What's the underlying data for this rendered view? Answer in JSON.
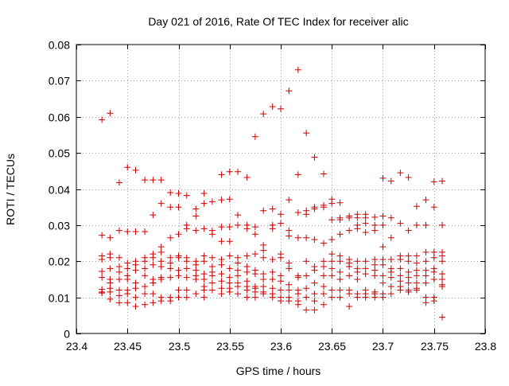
{
  "chart_data": {
    "type": "scatter",
    "title": "Day 021 of 2016, Rate Of TEC Index for receiver alic",
    "xlabel": "GPS time / hours",
    "ylabel": "ROTI / TECUs",
    "xlim": [
      23.4,
      23.8
    ],
    "ylim": [
      0,
      0.08
    ],
    "xticks": [
      "23.4",
      "23.45",
      "23.5",
      "23.55",
      "23.6",
      "23.65",
      "23.7",
      "23.75",
      "23.8"
    ],
    "yticks": [
      "0",
      "0.01",
      "0.02",
      "0.03",
      "0.04",
      "0.05",
      "0.06",
      "0.07",
      "0.08"
    ],
    "grid": true,
    "marker": "plus",
    "series_color": "#cc0000",
    "points": [
      [
        23.425,
        0.0592
      ],
      [
        23.425,
        0.0272
      ],
      [
        23.425,
        0.0215
      ],
      [
        23.425,
        0.0205
      ],
      [
        23.425,
        0.0172
      ],
      [
        23.425,
        0.0155
      ],
      [
        23.425,
        0.0122
      ],
      [
        23.425,
        0.0115
      ],
      [
        23.425,
        0.0112
      ],
      [
        23.433,
        0.061
      ],
      [
        23.433,
        0.0265
      ],
      [
        23.433,
        0.022
      ],
      [
        23.433,
        0.021
      ],
      [
        23.433,
        0.018
      ],
      [
        23.433,
        0.015
      ],
      [
        23.433,
        0.014
      ],
      [
        23.433,
        0.0125
      ],
      [
        23.433,
        0.0115
      ],
      [
        23.433,
        0.0095
      ],
      [
        23.442,
        0.0418
      ],
      [
        23.442,
        0.0285
      ],
      [
        23.442,
        0.021
      ],
      [
        23.442,
        0.0185
      ],
      [
        23.442,
        0.017
      ],
      [
        23.442,
        0.015
      ],
      [
        23.442,
        0.012
      ],
      [
        23.442,
        0.0105
      ],
      [
        23.442,
        0.0085
      ],
      [
        23.45,
        0.046
      ],
      [
        23.45,
        0.0282
      ],
      [
        23.45,
        0.0195
      ],
      [
        23.45,
        0.018
      ],
      [
        23.45,
        0.016
      ],
      [
        23.45,
        0.015
      ],
      [
        23.45,
        0.012
      ],
      [
        23.45,
        0.011
      ],
      [
        23.45,
        0.0085
      ],
      [
        23.458,
        0.0452
      ],
      [
        23.458,
        0.0282
      ],
      [
        23.458,
        0.02
      ],
      [
        23.458,
        0.019
      ],
      [
        23.458,
        0.0175
      ],
      [
        23.458,
        0.014
      ],
      [
        23.458,
        0.0125
      ],
      [
        23.458,
        0.01
      ],
      [
        23.458,
        0.0075
      ],
      [
        23.467,
        0.0425
      ],
      [
        23.467,
        0.0282
      ],
      [
        23.467,
        0.021
      ],
      [
        23.467,
        0.02
      ],
      [
        23.467,
        0.018
      ],
      [
        23.467,
        0.016
      ],
      [
        23.467,
        0.013
      ],
      [
        23.467,
        0.011
      ],
      [
        23.467,
        0.008
      ],
      [
        23.475,
        0.0425
      ],
      [
        23.475,
        0.0328
      ],
      [
        23.475,
        0.022
      ],
      [
        23.475,
        0.021
      ],
      [
        23.475,
        0.019
      ],
      [
        23.475,
        0.015
      ],
      [
        23.475,
        0.014
      ],
      [
        23.475,
        0.011
      ],
      [
        23.475,
        0.0085
      ],
      [
        23.483,
        0.0425
      ],
      [
        23.483,
        0.036
      ],
      [
        23.483,
        0.024
      ],
      [
        23.483,
        0.0225
      ],
      [
        23.483,
        0.02
      ],
      [
        23.483,
        0.0185
      ],
      [
        23.483,
        0.0155
      ],
      [
        23.483,
        0.015
      ],
      [
        23.483,
        0.01
      ],
      [
        23.483,
        0.009
      ],
      [
        23.492,
        0.039
      ],
      [
        23.492,
        0.035
      ],
      [
        23.492,
        0.0265
      ],
      [
        23.492,
        0.021
      ],
      [
        23.492,
        0.0195
      ],
      [
        23.492,
        0.018
      ],
      [
        23.492,
        0.0155
      ],
      [
        23.492,
        0.01
      ],
      [
        23.492,
        0.009
      ],
      [
        23.5,
        0.0388
      ],
      [
        23.5,
        0.035
      ],
      [
        23.5,
        0.0275
      ],
      [
        23.5,
        0.0215
      ],
      [
        23.5,
        0.021
      ],
      [
        23.5,
        0.0175
      ],
      [
        23.5,
        0.016
      ],
      [
        23.5,
        0.012
      ],
      [
        23.5,
        0.01
      ],
      [
        23.508,
        0.0382
      ],
      [
        23.508,
        0.03
      ],
      [
        23.508,
        0.029
      ],
      [
        23.508,
        0.021
      ],
      [
        23.508,
        0.02
      ],
      [
        23.508,
        0.018
      ],
      [
        23.508,
        0.0155
      ],
      [
        23.508,
        0.012
      ],
      [
        23.508,
        0.01
      ],
      [
        23.517,
        0.0345
      ],
      [
        23.517,
        0.0325
      ],
      [
        23.517,
        0.0285
      ],
      [
        23.517,
        0.02
      ],
      [
        23.517,
        0.019
      ],
      [
        23.517,
        0.0175
      ],
      [
        23.517,
        0.016
      ],
      [
        23.517,
        0.015
      ],
      [
        23.517,
        0.011
      ],
      [
        23.525,
        0.0388
      ],
      [
        23.525,
        0.036
      ],
      [
        23.525,
        0.029
      ],
      [
        23.525,
        0.0215
      ],
      [
        23.525,
        0.02
      ],
      [
        23.525,
        0.0165
      ],
      [
        23.525,
        0.015
      ],
      [
        23.525,
        0.013
      ],
      [
        23.525,
        0.012
      ],
      [
        23.525,
        0.01
      ],
      [
        23.533,
        0.0365
      ],
      [
        23.533,
        0.0285
      ],
      [
        23.533,
        0.0275
      ],
      [
        23.533,
        0.021
      ],
      [
        23.533,
        0.0185
      ],
      [
        23.533,
        0.017
      ],
      [
        23.533,
        0.016
      ],
      [
        23.533,
        0.014
      ],
      [
        23.533,
        0.012
      ],
      [
        23.542,
        0.044
      ],
      [
        23.542,
        0.037
      ],
      [
        23.542,
        0.0295
      ],
      [
        23.542,
        0.0255
      ],
      [
        23.542,
        0.0205
      ],
      [
        23.542,
        0.019
      ],
      [
        23.542,
        0.0165
      ],
      [
        23.542,
        0.0145
      ],
      [
        23.542,
        0.0125
      ],
      [
        23.542,
        0.011
      ],
      [
        23.55,
        0.0448
      ],
      [
        23.55,
        0.0372
      ],
      [
        23.55,
        0.0295
      ],
      [
        23.55,
        0.0255
      ],
      [
        23.55,
        0.0215
      ],
      [
        23.55,
        0.018
      ],
      [
        23.55,
        0.0155
      ],
      [
        23.55,
        0.014
      ],
      [
        23.55,
        0.0125
      ],
      [
        23.55,
        0.0115
      ],
      [
        23.558,
        0.0448
      ],
      [
        23.558,
        0.0328
      ],
      [
        23.558,
        0.03
      ],
      [
        23.558,
        0.021
      ],
      [
        23.558,
        0.0195
      ],
      [
        23.558,
        0.0175
      ],
      [
        23.558,
        0.016
      ],
      [
        23.558,
        0.014
      ],
      [
        23.558,
        0.013
      ],
      [
        23.558,
        0.011
      ],
      [
        23.567,
        0.0432
      ],
      [
        23.567,
        0.03
      ],
      [
        23.567,
        0.029
      ],
      [
        23.567,
        0.0215
      ],
      [
        23.567,
        0.0185
      ],
      [
        23.567,
        0.017
      ],
      [
        23.567,
        0.0145
      ],
      [
        23.567,
        0.013
      ],
      [
        23.567,
        0.012
      ],
      [
        23.567,
        0.01
      ],
      [
        23.575,
        0.0545
      ],
      [
        23.575,
        0.0295
      ],
      [
        23.575,
        0.0275
      ],
      [
        23.575,
        0.022
      ],
      [
        23.575,
        0.0175
      ],
      [
        23.575,
        0.0165
      ],
      [
        23.575,
        0.013
      ],
      [
        23.575,
        0.0125
      ],
      [
        23.575,
        0.0115
      ],
      [
        23.575,
        0.01
      ],
      [
        23.583,
        0.0608
      ],
      [
        23.583,
        0.034
      ],
      [
        23.583,
        0.0245
      ],
      [
        23.583,
        0.023
      ],
      [
        23.583,
        0.021
      ],
      [
        23.583,
        0.0165
      ],
      [
        23.583,
        0.015
      ],
      [
        23.583,
        0.013
      ],
      [
        23.583,
        0.0115
      ],
      [
        23.583,
        0.011
      ],
      [
        23.592,
        0.0628
      ],
      [
        23.592,
        0.0345
      ],
      [
        23.592,
        0.03
      ],
      [
        23.592,
        0.029
      ],
      [
        23.592,
        0.0205
      ],
      [
        23.592,
        0.017
      ],
      [
        23.592,
        0.015
      ],
      [
        23.592,
        0.0125
      ],
      [
        23.592,
        0.011
      ],
      [
        23.592,
        0.01
      ],
      [
        23.6,
        0.0622
      ],
      [
        23.6,
        0.033
      ],
      [
        23.6,
        0.0305
      ],
      [
        23.6,
        0.022
      ],
      [
        23.6,
        0.021
      ],
      [
        23.6,
        0.016
      ],
      [
        23.6,
        0.0145
      ],
      [
        23.6,
        0.012
      ],
      [
        23.6,
        0.01
      ],
      [
        23.6,
        0.009
      ],
      [
        23.608,
        0.0672
      ],
      [
        23.608,
        0.037
      ],
      [
        23.608,
        0.0285
      ],
      [
        23.608,
        0.027
      ],
      [
        23.608,
        0.0195
      ],
      [
        23.608,
        0.018
      ],
      [
        23.608,
        0.0135
      ],
      [
        23.608,
        0.012
      ],
      [
        23.608,
        0.01
      ],
      [
        23.608,
        0.009
      ],
      [
        23.617,
        0.073
      ],
      [
        23.617,
        0.044
      ],
      [
        23.617,
        0.0335
      ],
      [
        23.617,
        0.0265
      ],
      [
        23.617,
        0.016
      ],
      [
        23.617,
        0.0155
      ],
      [
        23.617,
        0.012
      ],
      [
        23.617,
        0.011
      ],
      [
        23.617,
        0.009
      ],
      [
        23.617,
        0.008
      ],
      [
        23.625,
        0.0555
      ],
      [
        23.625,
        0.034
      ],
      [
        23.625,
        0.033
      ],
      [
        23.625,
        0.0265
      ],
      [
        23.625,
        0.02
      ],
      [
        23.625,
        0.016
      ],
      [
        23.625,
        0.0125
      ],
      [
        23.625,
        0.01
      ],
      [
        23.625,
        0.0065
      ],
      [
        23.633,
        0.0488
      ],
      [
        23.633,
        0.035
      ],
      [
        23.633,
        0.0345
      ],
      [
        23.633,
        0.026
      ],
      [
        23.633,
        0.0185
      ],
      [
        23.633,
        0.0175
      ],
      [
        23.633,
        0.014
      ],
      [
        23.633,
        0.011
      ],
      [
        23.633,
        0.009
      ],
      [
        23.633,
        0.0065
      ],
      [
        23.642,
        0.0442
      ],
      [
        23.642,
        0.0355
      ],
      [
        23.642,
        0.035
      ],
      [
        23.642,
        0.025
      ],
      [
        23.642,
        0.02
      ],
      [
        23.642,
        0.0185
      ],
      [
        23.642,
        0.016
      ],
      [
        23.642,
        0.013
      ],
      [
        23.642,
        0.011
      ],
      [
        23.642,
        0.008
      ],
      [
        23.65,
        0.0372
      ],
      [
        23.65,
        0.036
      ],
      [
        23.65,
        0.0315
      ],
      [
        23.65,
        0.026
      ],
      [
        23.65,
        0.022
      ],
      [
        23.65,
        0.02
      ],
      [
        23.65,
        0.018
      ],
      [
        23.65,
        0.016
      ],
      [
        23.65,
        0.012
      ],
      [
        23.65,
        0.01
      ],
      [
        23.658,
        0.0362
      ],
      [
        23.658,
        0.032
      ],
      [
        23.658,
        0.0315
      ],
      [
        23.658,
        0.0275
      ],
      [
        23.658,
        0.0215
      ],
      [
        23.658,
        0.02
      ],
      [
        23.658,
        0.017
      ],
      [
        23.658,
        0.015
      ],
      [
        23.658,
        0.012
      ],
      [
        23.658,
        0.01
      ],
      [
        23.667,
        0.0325
      ],
      [
        23.667,
        0.032
      ],
      [
        23.667,
        0.0285
      ],
      [
        23.667,
        0.0205
      ],
      [
        23.667,
        0.0195
      ],
      [
        23.667,
        0.0185
      ],
      [
        23.667,
        0.016
      ],
      [
        23.667,
        0.012
      ],
      [
        23.667,
        0.011
      ],
      [
        23.667,
        0.0075
      ],
      [
        23.675,
        0.033
      ],
      [
        23.675,
        0.032
      ],
      [
        23.675,
        0.03
      ],
      [
        23.675,
        0.029
      ],
      [
        23.675,
        0.02
      ],
      [
        23.675,
        0.018
      ],
      [
        23.675,
        0.017
      ],
      [
        23.675,
        0.015
      ],
      [
        23.675,
        0.011
      ],
      [
        23.675,
        0.01
      ],
      [
        23.683,
        0.033
      ],
      [
        23.683,
        0.032
      ],
      [
        23.683,
        0.0305
      ],
      [
        23.683,
        0.028
      ],
      [
        23.683,
        0.02
      ],
      [
        23.683,
        0.018
      ],
      [
        23.683,
        0.0165
      ],
      [
        23.683,
        0.012
      ],
      [
        23.683,
        0.011
      ],
      [
        23.683,
        0.01
      ],
      [
        23.692,
        0.0322
      ],
      [
        23.692,
        0.03
      ],
      [
        23.692,
        0.0285
      ],
      [
        23.692,
        0.0205
      ],
      [
        23.692,
        0.019
      ],
      [
        23.692,
        0.0175
      ],
      [
        23.692,
        0.016
      ],
      [
        23.692,
        0.0115
      ],
      [
        23.692,
        0.011
      ],
      [
        23.692,
        0.01
      ],
      [
        23.7,
        0.043
      ],
      [
        23.7,
        0.0325
      ],
      [
        23.7,
        0.03
      ],
      [
        23.7,
        0.024
      ],
      [
        23.7,
        0.0205
      ],
      [
        23.7,
        0.019
      ],
      [
        23.7,
        0.016
      ],
      [
        23.7,
        0.014
      ],
      [
        23.7,
        0.011
      ],
      [
        23.7,
        0.01
      ],
      [
        23.708,
        0.0422
      ],
      [
        23.708,
        0.032
      ],
      [
        23.708,
        0.0265
      ],
      [
        23.708,
        0.0205
      ],
      [
        23.708,
        0.018
      ],
      [
        23.708,
        0.017
      ],
      [
        23.708,
        0.0155
      ],
      [
        23.708,
        0.013
      ],
      [
        23.708,
        0.011
      ],
      [
        23.717,
        0.0445
      ],
      [
        23.717,
        0.0305
      ],
      [
        23.717,
        0.0215
      ],
      [
        23.717,
        0.0205
      ],
      [
        23.717,
        0.018
      ],
      [
        23.717,
        0.016
      ],
      [
        23.717,
        0.0145
      ],
      [
        23.717,
        0.013
      ],
      [
        23.717,
        0.012
      ],
      [
        23.725,
        0.0432
      ],
      [
        23.725,
        0.0285
      ],
      [
        23.725,
        0.0215
      ],
      [
        23.725,
        0.02
      ],
      [
        23.725,
        0.017
      ],
      [
        23.725,
        0.0155
      ],
      [
        23.725,
        0.014
      ],
      [
        23.725,
        0.012
      ],
      [
        23.725,
        0.0115
      ],
      [
        23.733,
        0.0352
      ],
      [
        23.733,
        0.03
      ],
      [
        23.733,
        0.0215
      ],
      [
        23.733,
        0.0195
      ],
      [
        23.733,
        0.0175
      ],
      [
        23.733,
        0.016
      ],
      [
        23.733,
        0.014
      ],
      [
        23.733,
        0.0125
      ],
      [
        23.733,
        0.012
      ],
      [
        23.742,
        0.037
      ],
      [
        23.742,
        0.03
      ],
      [
        23.742,
        0.0225
      ],
      [
        23.742,
        0.02
      ],
      [
        23.742,
        0.0175
      ],
      [
        23.742,
        0.016
      ],
      [
        23.742,
        0.014
      ],
      [
        23.742,
        0.01
      ],
      [
        23.742,
        0.0085
      ],
      [
        23.75,
        0.042
      ],
      [
        23.75,
        0.035
      ],
      [
        23.75,
        0.0225
      ],
      [
        23.75,
        0.021
      ],
      [
        23.75,
        0.018
      ],
      [
        23.75,
        0.017
      ],
      [
        23.75,
        0.015
      ],
      [
        23.75,
        0.01
      ],
      [
        23.75,
        0.009
      ],
      [
        23.758,
        0.0422
      ],
      [
        23.758,
        0.03
      ],
      [
        23.758,
        0.0225
      ],
      [
        23.758,
        0.0215
      ],
      [
        23.758,
        0.02
      ],
      [
        23.758,
        0.0165
      ],
      [
        23.758,
        0.015
      ],
      [
        23.758,
        0.0135
      ],
      [
        23.758,
        0.013
      ],
      [
        23.758,
        0.0045
      ]
    ]
  }
}
